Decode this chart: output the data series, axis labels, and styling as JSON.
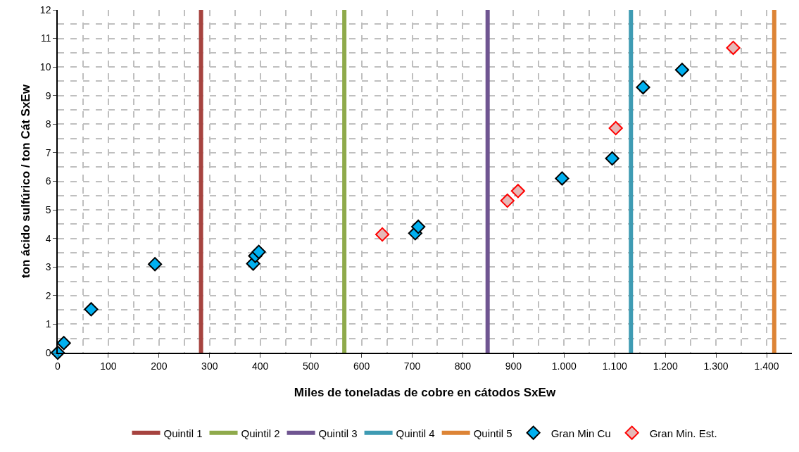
{
  "chart_data": {
    "type": "scatter",
    "xlabel": "Miles de toneladas de cobre en cátodos SxEw",
    "ylabel": "ton ácido sulfúrico / ton Cát SxEw",
    "xlim": [
      0,
      1450
    ],
    "xticks": [
      0,
      100,
      200,
      300,
      400,
      500,
      600,
      700,
      800,
      900,
      {
        "value": 1000,
        "label": "1.000"
      },
      {
        "value": 1100,
        "label": "1.100"
      },
      {
        "value": 1200,
        "label": "1.200"
      },
      {
        "value": 1300,
        "label": "1.300"
      },
      {
        "value": 1400,
        "label": "1.400"
      }
    ],
    "ylim": [
      0,
      12
    ],
    "yticks": [
      0,
      1,
      2,
      3,
      4,
      5,
      6,
      7,
      8,
      9,
      10,
      11,
      12
    ],
    "grid": true,
    "legend": "bottom",
    "marker": "diamond",
    "ref_lines": [
      {
        "axis": "x",
        "value": 283,
        "label": "Quintil 1",
        "color": "#a6433f"
      },
      {
        "axis": "x",
        "value": 566,
        "label": "Quintil 2",
        "color": "#8faa4b"
      },
      {
        "axis": "x",
        "value": 849,
        "label": "Quintil 3",
        "color": "#6f5591"
      },
      {
        "axis": "x",
        "value": 1132,
        "label": "Quintil 4",
        "color": "#3e9bb3"
      },
      {
        "axis": "x",
        "value": 1415,
        "label": "Quintil 5",
        "color": "#dd8436"
      }
    ],
    "series": [
      {
        "name": "Gran Min Cu",
        "color": "#00b0f0",
        "x": [
          0,
          12,
          66,
          192,
          386,
          390,
          397,
          706,
          712,
          996,
          1095,
          1156,
          1233
        ],
        "values": [
          0,
          0.34,
          1.52,
          3.1,
          3.12,
          3.39,
          3.53,
          4.18,
          4.41,
          6.1,
          6.8,
          9.29,
          9.9
        ]
      },
      {
        "name": "Gran Min. Est.",
        "color": "#e6b8b7",
        "x": [
          641,
          888,
          909,
          1102,
          1334
        ],
        "values": [
          4.14,
          5.32,
          5.66,
          7.86,
          10.67
        ]
      }
    ]
  }
}
